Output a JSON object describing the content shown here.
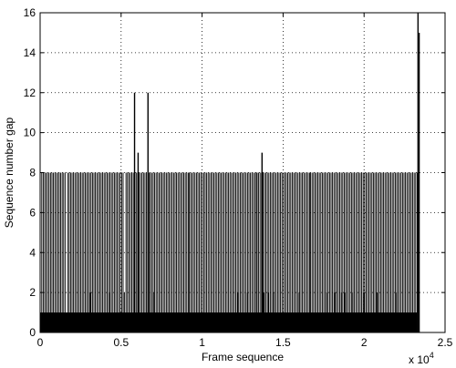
{
  "chart_data": {
    "type": "bar",
    "xlabel": "Frame sequence",
    "ylabel": "Sequence number gap",
    "x_multiplier_label": "x 10",
    "x_multiplier_exponent": "4",
    "xlim": [
      0,
      2.5
    ],
    "ylim": [
      0,
      16
    ],
    "xticks": [
      0,
      0.5,
      1,
      1.5,
      2,
      2.5
    ],
    "yticks": [
      0,
      2,
      4,
      6,
      8,
      10,
      12,
      14,
      16
    ],
    "grid": true,
    "baseline": {
      "x_start": 0,
      "x_end": 2.33,
      "value": 1
    },
    "spikes": [
      {
        "x": 0.583,
        "value": 12
      },
      {
        "x": 0.605,
        "value": 9
      },
      {
        "x": 0.666,
        "value": 12
      },
      {
        "x": 1.37,
        "value": 9
      },
      {
        "x": 2.333,
        "value": 16
      },
      {
        "x": 2.34,
        "value": 15
      }
    ],
    "dense_segments": [
      {
        "x_start": 0.01,
        "x_end": 0.16,
        "value": 8
      },
      {
        "x_start": 0.17,
        "x_end": 0.52,
        "value": 8
      },
      {
        "x_start": 0.53,
        "x_end": 0.68,
        "value": 8
      },
      {
        "x_start": 0.68,
        "x_end": 0.92,
        "value": 8
      },
      {
        "x_start": 0.92,
        "x_end": 1.34,
        "value": 8
      },
      {
        "x_start": 1.34,
        "x_end": 1.67,
        "value": 8
      },
      {
        "x_start": 1.67,
        "x_end": 2.33,
        "value": 8
      }
    ],
    "low_spikes": [
      {
        "x": 0.31,
        "value": 2
      },
      {
        "x": 0.43,
        "value": 2
      },
      {
        "x": 0.52,
        "value": 2
      },
      {
        "x": 0.7,
        "value": 2
      },
      {
        "x": 1.22,
        "value": 2
      },
      {
        "x": 1.28,
        "value": 2
      },
      {
        "x": 1.38,
        "value": 2
      },
      {
        "x": 1.41,
        "value": 2
      },
      {
        "x": 1.44,
        "value": 2
      },
      {
        "x": 1.6,
        "value": 2
      },
      {
        "x": 1.77,
        "value": 2
      },
      {
        "x": 1.82,
        "value": 2
      },
      {
        "x": 1.86,
        "value": 2
      },
      {
        "x": 1.88,
        "value": 2
      },
      {
        "x": 1.93,
        "value": 2
      },
      {
        "x": 2.0,
        "value": 2
      },
      {
        "x": 2.08,
        "value": 2
      },
      {
        "x": 2.2,
        "value": 2
      }
    ]
  }
}
